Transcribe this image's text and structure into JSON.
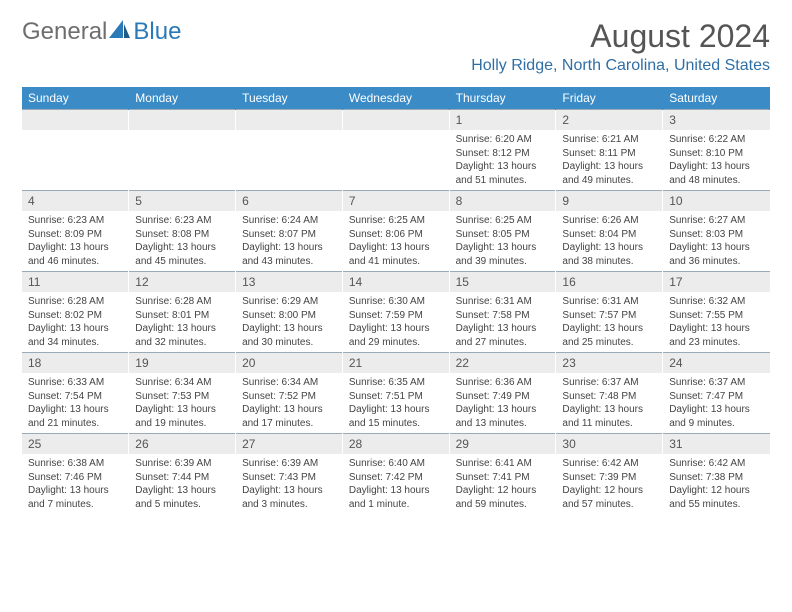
{
  "brand": {
    "first": "General",
    "second": "Blue"
  },
  "title": "August 2024",
  "location": "Holly Ridge, North Carolina, United States",
  "colors": {
    "accent": "#3b8bc6",
    "logo_blue": "#2b7ab8",
    "logo_gray": "#6e6e6e",
    "daynum_bg": "#ececec",
    "grid_line": "#9aaab6"
  },
  "dow": [
    "Sunday",
    "Monday",
    "Tuesday",
    "Wednesday",
    "Thursday",
    "Friday",
    "Saturday"
  ],
  "weeks": [
    [
      null,
      null,
      null,
      null,
      {
        "n": "1",
        "sunrise": "6:20 AM",
        "sunset": "8:12 PM",
        "daylight": "13 hours and 51 minutes."
      },
      {
        "n": "2",
        "sunrise": "6:21 AM",
        "sunset": "8:11 PM",
        "daylight": "13 hours and 49 minutes."
      },
      {
        "n": "3",
        "sunrise": "6:22 AM",
        "sunset": "8:10 PM",
        "daylight": "13 hours and 48 minutes."
      }
    ],
    [
      {
        "n": "4",
        "sunrise": "6:23 AM",
        "sunset": "8:09 PM",
        "daylight": "13 hours and 46 minutes."
      },
      {
        "n": "5",
        "sunrise": "6:23 AM",
        "sunset": "8:08 PM",
        "daylight": "13 hours and 45 minutes."
      },
      {
        "n": "6",
        "sunrise": "6:24 AM",
        "sunset": "8:07 PM",
        "daylight": "13 hours and 43 minutes."
      },
      {
        "n": "7",
        "sunrise": "6:25 AM",
        "sunset": "8:06 PM",
        "daylight": "13 hours and 41 minutes."
      },
      {
        "n": "8",
        "sunrise": "6:25 AM",
        "sunset": "8:05 PM",
        "daylight": "13 hours and 39 minutes."
      },
      {
        "n": "9",
        "sunrise": "6:26 AM",
        "sunset": "8:04 PM",
        "daylight": "13 hours and 38 minutes."
      },
      {
        "n": "10",
        "sunrise": "6:27 AM",
        "sunset": "8:03 PM",
        "daylight": "13 hours and 36 minutes."
      }
    ],
    [
      {
        "n": "11",
        "sunrise": "6:28 AM",
        "sunset": "8:02 PM",
        "daylight": "13 hours and 34 minutes."
      },
      {
        "n": "12",
        "sunrise": "6:28 AM",
        "sunset": "8:01 PM",
        "daylight": "13 hours and 32 minutes."
      },
      {
        "n": "13",
        "sunrise": "6:29 AM",
        "sunset": "8:00 PM",
        "daylight": "13 hours and 30 minutes."
      },
      {
        "n": "14",
        "sunrise": "6:30 AM",
        "sunset": "7:59 PM",
        "daylight": "13 hours and 29 minutes."
      },
      {
        "n": "15",
        "sunrise": "6:31 AM",
        "sunset": "7:58 PM",
        "daylight": "13 hours and 27 minutes."
      },
      {
        "n": "16",
        "sunrise": "6:31 AM",
        "sunset": "7:57 PM",
        "daylight": "13 hours and 25 minutes."
      },
      {
        "n": "17",
        "sunrise": "6:32 AM",
        "sunset": "7:55 PM",
        "daylight": "13 hours and 23 minutes."
      }
    ],
    [
      {
        "n": "18",
        "sunrise": "6:33 AM",
        "sunset": "7:54 PM",
        "daylight": "13 hours and 21 minutes."
      },
      {
        "n": "19",
        "sunrise": "6:34 AM",
        "sunset": "7:53 PM",
        "daylight": "13 hours and 19 minutes."
      },
      {
        "n": "20",
        "sunrise": "6:34 AM",
        "sunset": "7:52 PM",
        "daylight": "13 hours and 17 minutes."
      },
      {
        "n": "21",
        "sunrise": "6:35 AM",
        "sunset": "7:51 PM",
        "daylight": "13 hours and 15 minutes."
      },
      {
        "n": "22",
        "sunrise": "6:36 AM",
        "sunset": "7:49 PM",
        "daylight": "13 hours and 13 minutes."
      },
      {
        "n": "23",
        "sunrise": "6:37 AM",
        "sunset": "7:48 PM",
        "daylight": "13 hours and 11 minutes."
      },
      {
        "n": "24",
        "sunrise": "6:37 AM",
        "sunset": "7:47 PM",
        "daylight": "13 hours and 9 minutes."
      }
    ],
    [
      {
        "n": "25",
        "sunrise": "6:38 AM",
        "sunset": "7:46 PM",
        "daylight": "13 hours and 7 minutes."
      },
      {
        "n": "26",
        "sunrise": "6:39 AM",
        "sunset": "7:44 PM",
        "daylight": "13 hours and 5 minutes."
      },
      {
        "n": "27",
        "sunrise": "6:39 AM",
        "sunset": "7:43 PM",
        "daylight": "13 hours and 3 minutes."
      },
      {
        "n": "28",
        "sunrise": "6:40 AM",
        "sunset": "7:42 PM",
        "daylight": "13 hours and 1 minute."
      },
      {
        "n": "29",
        "sunrise": "6:41 AM",
        "sunset": "7:41 PM",
        "daylight": "12 hours and 59 minutes."
      },
      {
        "n": "30",
        "sunrise": "6:42 AM",
        "sunset": "7:39 PM",
        "daylight": "12 hours and 57 minutes."
      },
      {
        "n": "31",
        "sunrise": "6:42 AM",
        "sunset": "7:38 PM",
        "daylight": "12 hours and 55 minutes."
      }
    ]
  ],
  "labels": {
    "sunrise": "Sunrise:",
    "sunset": "Sunset:",
    "daylight": "Daylight:"
  }
}
